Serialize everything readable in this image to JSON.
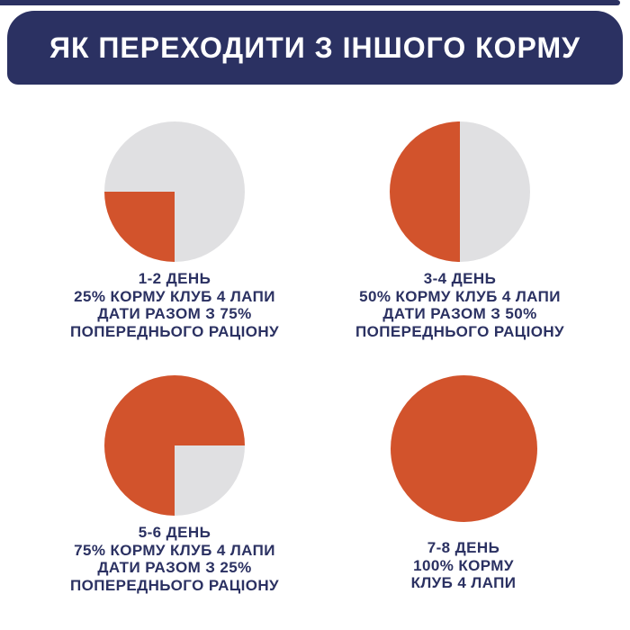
{
  "header": {
    "title": "ЯК ПЕРЕХОДИТИ З ІНШОГО КОРМУ",
    "background": "#2B3162",
    "text_color": "#FFFFFF"
  },
  "colors": {
    "brand_navy": "#2B3162",
    "food_orange": "#D2532C",
    "previous_ration_gray": "#E0E0E2",
    "page_background": "#FFFFFF"
  },
  "chart_data": [
    {
      "type": "pie",
      "title": "1-2 ДЕНЬ",
      "caption_lines": [
        "25% КОРМУ КЛУБ 4 ЛАПИ",
        "ДАТИ РАЗОМ З 75%",
        "ПОПЕРЕДНЬОГО РАЦІОНУ"
      ],
      "slices": [
        {
          "name": "КОРМ КЛУБ 4 ЛАПИ",
          "value": 25,
          "color": "#D2532C"
        },
        {
          "name": "ПОПЕРЕДНІЙ РАЦІОН",
          "value": 75,
          "color": "#E0E0E2"
        }
      ],
      "legend": "none",
      "orange_sector_position": "bottom-left quadrant"
    },
    {
      "type": "pie",
      "title": "3-4 ДЕНЬ",
      "caption_lines": [
        "50% КОРМУ КЛУБ 4 ЛАПИ",
        "ДАТИ РАЗОМ З 50%",
        "ПОПЕРЕДНЬОГО РАЦІОНУ"
      ],
      "slices": [
        {
          "name": "КОРМ КЛУБ 4 ЛАПИ",
          "value": 50,
          "color": "#D2532C"
        },
        {
          "name": "ПОПЕРЕДНІЙ РАЦІОН",
          "value": 50,
          "color": "#E0E0E2"
        }
      ],
      "legend": "none",
      "orange_sector_position": "left half"
    },
    {
      "type": "pie",
      "title": "5-6 ДЕНЬ",
      "caption_lines": [
        "75% КОРМУ КЛУБ 4 ЛАПИ",
        "ДАТИ РАЗОМ З 25%",
        "ПОПЕРЕДНЬОГО РАЦІОНУ"
      ],
      "slices": [
        {
          "name": "КОРМ КЛУБ 4 ЛАПИ",
          "value": 75,
          "color": "#D2532C"
        },
        {
          "name": "ПОПЕРЕДНІЙ РАЦІОН",
          "value": 25,
          "color": "#E0E0E2"
        }
      ],
      "legend": "none",
      "orange_sector_position": "all except bottom-right quadrant"
    },
    {
      "type": "pie",
      "title": "7-8 ДЕНЬ",
      "caption_lines": [
        "100% КОРМУ",
        "КЛУБ 4 ЛАПИ"
      ],
      "slices": [
        {
          "name": "КОРМ КЛУБ 4 ЛАПИ",
          "value": 100,
          "color": "#D2532C"
        }
      ],
      "legend": "none",
      "orange_sector_position": "full circle"
    }
  ]
}
